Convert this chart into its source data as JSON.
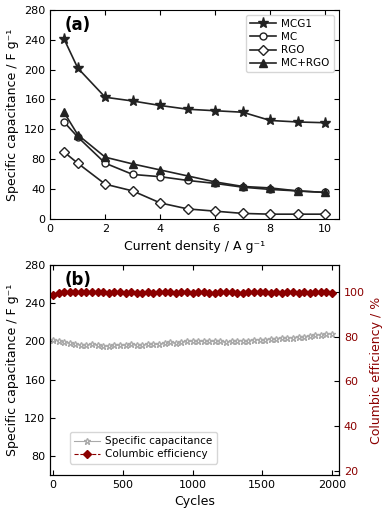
{
  "panel_a": {
    "title": "(a)",
    "xlabel": "Current density / A g⁻¹",
    "ylabel": "Specific capacitance / F g⁻¹",
    "xlim": [
      0,
      10.5
    ],
    "ylim": [
      0,
      280
    ],
    "yticks": [
      0,
      40,
      80,
      120,
      160,
      200,
      240,
      280
    ],
    "xticks": [
      0,
      2,
      4,
      6,
      8,
      10
    ],
    "series": {
      "MCG1": {
        "x": [
          0.5,
          1,
          2,
          3,
          4,
          5,
          6,
          7,
          8,
          9,
          10
        ],
        "y": [
          241,
          202,
          163,
          158,
          152,
          147,
          145,
          143,
          132,
          130,
          129
        ],
        "marker": "*",
        "color": "#222222",
        "linestyle": "-",
        "markersize": 8,
        "markerfacecolor": "#222222"
      },
      "MC": {
        "x": [
          0.5,
          1,
          2,
          3,
          4,
          5,
          6,
          7,
          8,
          9,
          10
        ],
        "y": [
          130,
          110,
          75,
          60,
          57,
          52,
          48,
          43,
          40,
          38,
          36
        ],
        "marker": "o",
        "color": "#222222",
        "linestyle": "-",
        "markersize": 5,
        "markerfacecolor": "white"
      },
      "RGO": {
        "x": [
          0.5,
          1,
          2,
          3,
          4,
          5,
          6,
          7,
          8,
          9,
          10
        ],
        "y": [
          90,
          75,
          47,
          38,
          22,
          14,
          11,
          8,
          7,
          7,
          7
        ],
        "marker": "D",
        "color": "#222222",
        "linestyle": "-",
        "markersize": 5,
        "markerfacecolor": "white"
      },
      "MC+RGO": {
        "x": [
          0.5,
          1,
          2,
          3,
          4,
          5,
          6,
          7,
          8,
          9,
          10
        ],
        "y": [
          143,
          113,
          83,
          74,
          66,
          58,
          50,
          44,
          42,
          38,
          36
        ],
        "marker": "^",
        "color": "#222222",
        "linestyle": "-",
        "markersize": 6,
        "markerfacecolor": "#222222"
      }
    }
  },
  "panel_b": {
    "title": "(b)",
    "xlabel": "Cycles",
    "ylabel_left": "Specific capacitance / F g⁻¹",
    "ylabel_right": "Columbic efficiency / %",
    "xlim": [
      -20,
      2050
    ],
    "ylim_left": [
      60,
      280
    ],
    "ylim_right": [
      18,
      112
    ],
    "yticks_left": [
      80,
      120,
      160,
      200,
      240,
      280
    ],
    "yticks_right": [
      20,
      40,
      60,
      80,
      100
    ],
    "xticks": [
      0,
      500,
      1000,
      1500,
      2000
    ],
    "specific_cap": {
      "x": [
        0,
        40,
        80,
        120,
        160,
        200,
        240,
        280,
        320,
        360,
        400,
        440,
        480,
        520,
        560,
        600,
        640,
        680,
        720,
        760,
        800,
        840,
        880,
        920,
        960,
        1000,
        1040,
        1080,
        1120,
        1160,
        1200,
        1240,
        1280,
        1320,
        1360,
        1400,
        1440,
        1480,
        1520,
        1560,
        1600,
        1640,
        1680,
        1720,
        1760,
        1800,
        1840,
        1880,
        1920,
        1960,
        2000
      ],
      "y": [
        202,
        201,
        199,
        198,
        197,
        196,
        196,
        197,
        196,
        195,
        195,
        196,
        196,
        196,
        197,
        196,
        196,
        197,
        197,
        197,
        198,
        199,
        198,
        199,
        200,
        200,
        200,
        200,
        200,
        200,
        200,
        199,
        200,
        201,
        201,
        201,
        202,
        202,
        202,
        203,
        203,
        204,
        204,
        204,
        205,
        205,
        206,
        207,
        207,
        208,
        208
      ],
      "marker": "*",
      "color": "#aaaaaa",
      "linestyle": "-",
      "markersize": 5,
      "label": "Specific capacitance"
    },
    "coulombic_eff": {
      "x": [
        0,
        40,
        80,
        120,
        160,
        200,
        240,
        280,
        320,
        360,
        400,
        440,
        480,
        520,
        560,
        600,
        640,
        680,
        720,
        760,
        800,
        840,
        880,
        920,
        960,
        1000,
        1040,
        1080,
        1120,
        1160,
        1200,
        1240,
        1280,
        1320,
        1360,
        1400,
        1440,
        1480,
        1520,
        1560,
        1600,
        1640,
        1680,
        1720,
        1760,
        1800,
        1840,
        1880,
        1920,
        1960,
        2000
      ],
      "y": [
        98.5,
        99.5,
        100,
        100,
        100,
        100,
        100,
        100,
        100,
        100,
        99.5,
        100,
        100,
        99.5,
        100,
        99.5,
        99.5,
        100,
        99.5,
        100,
        100,
        100,
        99.5,
        100,
        100,
        99.5,
        100,
        100,
        99.5,
        99.5,
        100,
        100,
        100,
        99.5,
        99.5,
        100,
        100,
        100,
        100,
        99.5,
        100,
        99.5,
        100,
        100,
        99.5,
        100,
        99.5,
        100,
        100,
        100,
        99.5
      ],
      "marker": "D",
      "color": "#8b0000",
      "linestyle": "--",
      "markersize": 4,
      "label": "Columbic efficiency"
    }
  }
}
